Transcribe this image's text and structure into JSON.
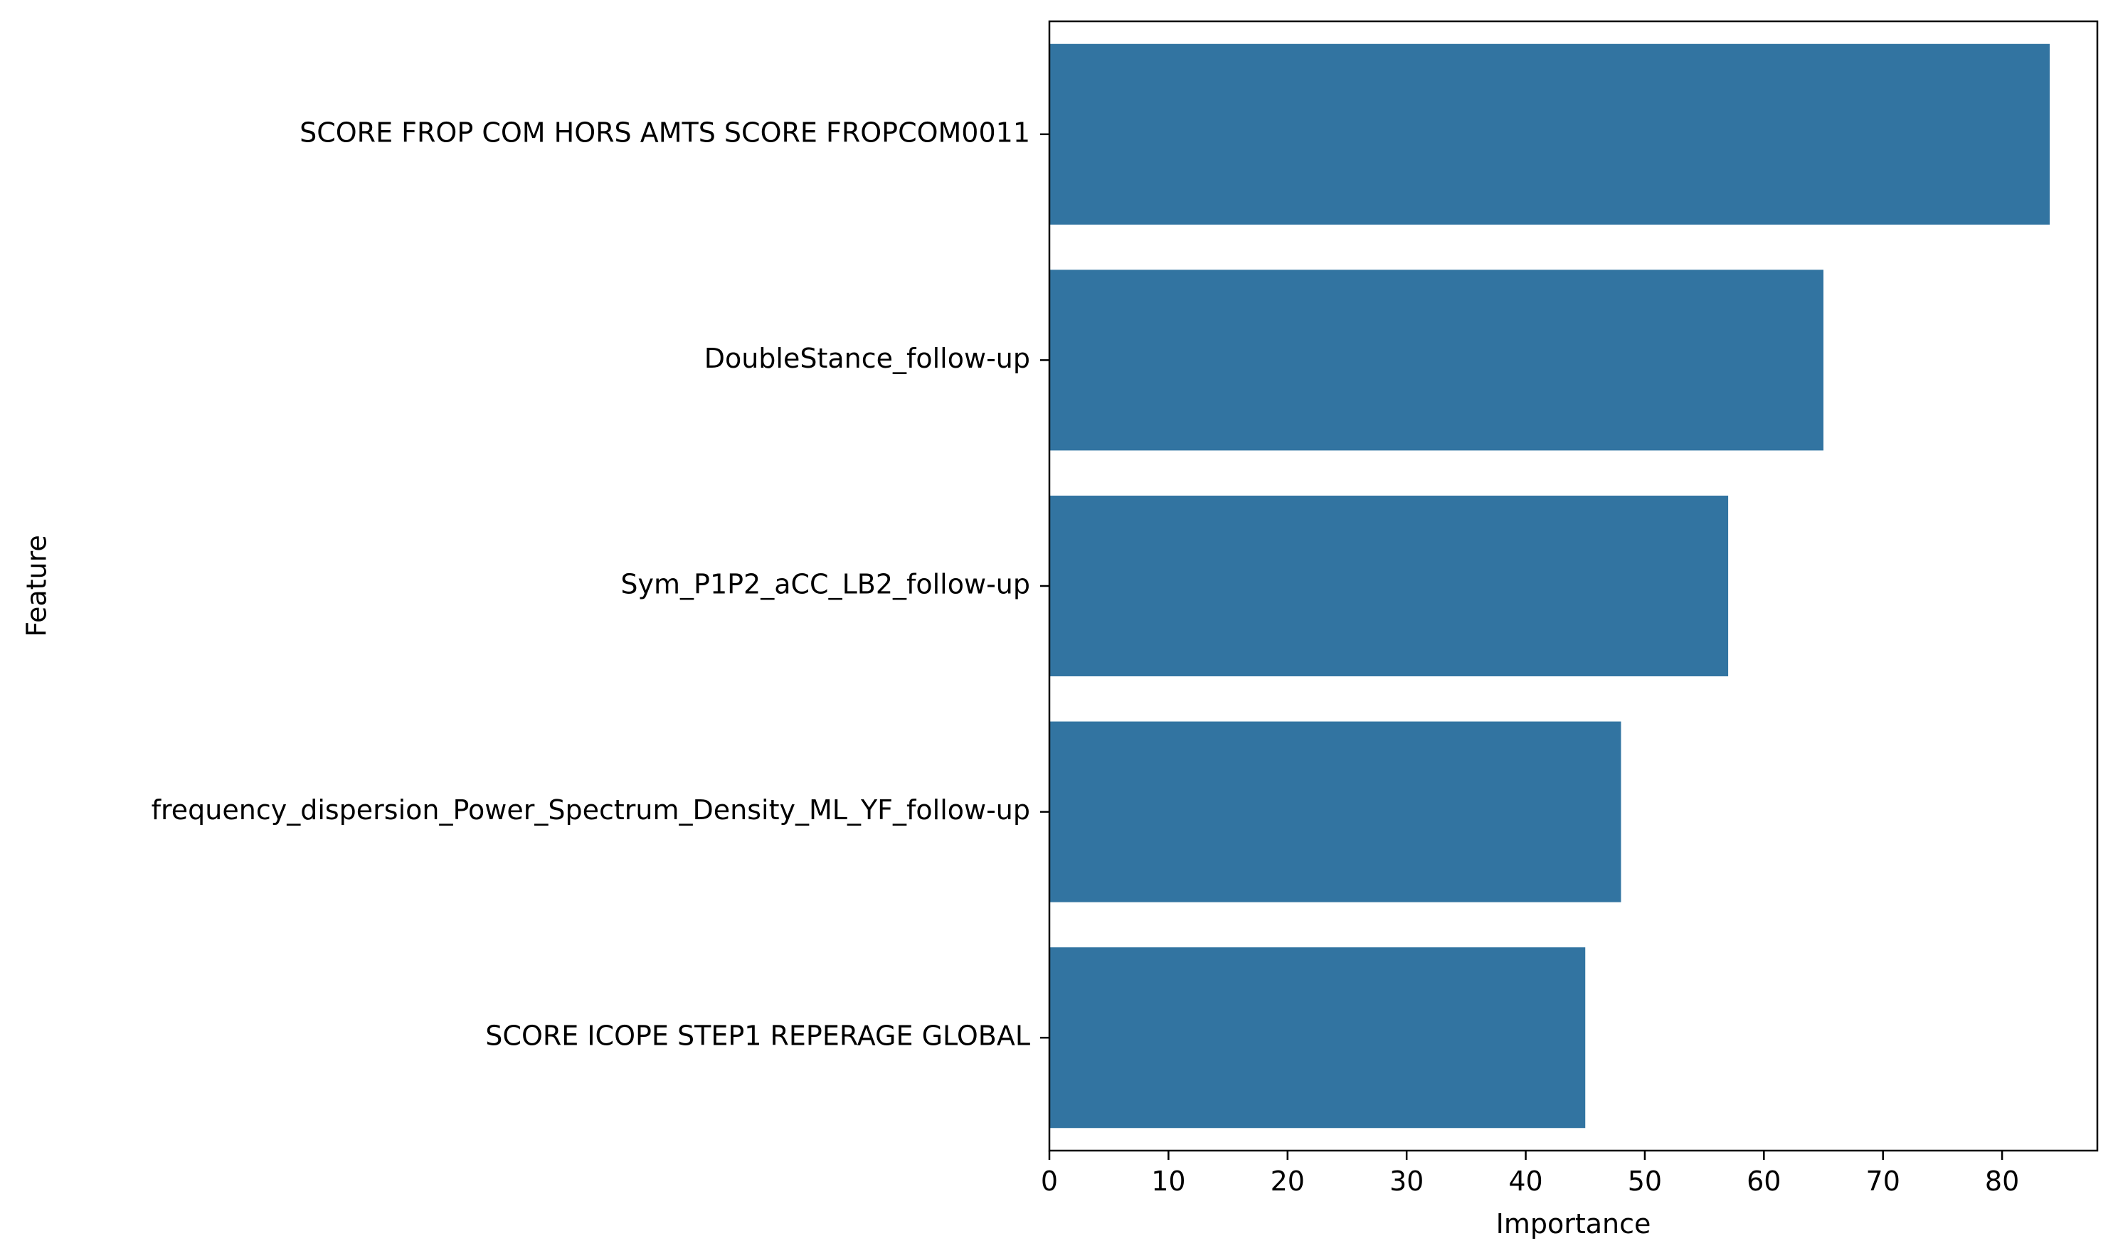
{
  "chart_data": {
    "type": "bar",
    "orientation": "horizontal",
    "categories": [
      "SCORE FROP COM HORS AMTS SCORE FROPCOM0011",
      "DoubleStance_follow-up",
      "Sym_P1P2_aCC_LB2_follow-up",
      "frequency_dispersion_Power_Spectrum_Density_ML_YF_follow-up",
      "SCORE ICOPE STEP1 REPERAGE GLOBAL"
    ],
    "values": [
      84,
      65,
      57,
      48,
      45
    ],
    "xlabel": "Importance",
    "ylabel": "Feature",
    "xlim": [
      0,
      88
    ],
    "xticks": [
      0,
      10,
      20,
      30,
      40,
      50,
      60,
      70,
      80
    ],
    "grid": false,
    "bar_color": "#3274a1"
  }
}
